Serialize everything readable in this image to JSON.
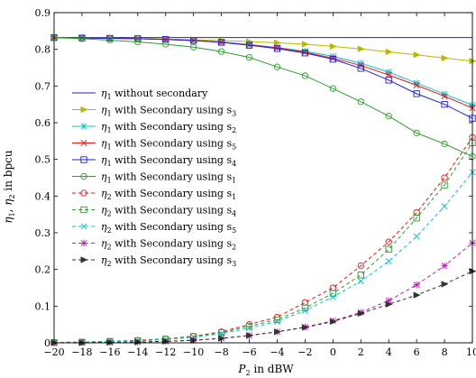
{
  "chart_data": {
    "type": "line",
    "xlabel": "P_2 in dBW",
    "ylabel": "η_1, η_2 in bpcu",
    "xlim": [
      -20,
      10
    ],
    "ylim": [
      0,
      0.9
    ],
    "xticks": [
      -20,
      -18,
      -16,
      -14,
      -12,
      -10,
      -8,
      -6,
      -4,
      -2,
      0,
      2,
      4,
      6,
      8,
      10
    ],
    "yticks": [
      0,
      0.1,
      0.2,
      0.3,
      0.4,
      0.5,
      0.6,
      0.7,
      0.8,
      0.9
    ],
    "grid": false,
    "legend_position": "center-left",
    "x": [
      -20,
      -18,
      -16,
      -14,
      -12,
      -10,
      -8,
      -6,
      -4,
      -2,
      0,
      2,
      4,
      6,
      8,
      10
    ],
    "series": [
      {
        "name": "η1 without secondary",
        "legend_main": "η",
        "legend_sub": "1",
        "legend_rest": " without secondary",
        "legend_sub2": "",
        "color": "#1f1fd6",
        "dash": "solid",
        "marker": "none",
        "values": [
          0.832,
          0.832,
          0.832,
          0.832,
          0.832,
          0.832,
          0.832,
          0.832,
          0.832,
          0.832,
          0.832,
          0.832,
          0.832,
          0.832,
          0.832,
          0.832
        ]
      },
      {
        "name": "η1 with Secondary using s3",
        "legend_main": "η",
        "legend_sub": "1",
        "legend_rest": " with Secondary using s",
        "legend_sub2": "3",
        "color": "#b8b800",
        "dash": "solid",
        "marker": "triangle-right",
        "values": [
          0.832,
          0.831,
          0.83,
          0.829,
          0.828,
          0.826,
          0.824,
          0.821,
          0.818,
          0.814,
          0.808,
          0.801,
          0.793,
          0.785,
          0.776,
          0.768
        ]
      },
      {
        "name": "η1 with Secondary using s2",
        "legend_main": "η",
        "legend_sub": "1",
        "legend_rest": " with Secondary using s",
        "legend_sub2": "2",
        "color": "#17becf",
        "dash": "solid",
        "marker": "star",
        "values": [
          0.832,
          0.831,
          0.83,
          0.829,
          0.827,
          0.824,
          0.82,
          0.813,
          0.805,
          0.795,
          0.781,
          0.762,
          0.738,
          0.708,
          0.678,
          0.648
        ]
      },
      {
        "name": "η1 with Secondary using s5",
        "legend_main": "η",
        "legend_sub": "1",
        "legend_rest": " with Secondary using s",
        "legend_sub2": "5",
        "color": "#e31a1c",
        "dash": "solid",
        "marker": "x",
        "values": [
          0.832,
          0.831,
          0.83,
          0.829,
          0.827,
          0.824,
          0.819,
          0.812,
          0.804,
          0.792,
          0.776,
          0.756,
          0.73,
          0.702,
          0.672,
          0.64
        ]
      },
      {
        "name": "η1 with Secondary using s4",
        "legend_main": "η",
        "legend_sub": "1",
        "legend_rest": " with Secondary using s",
        "legend_sub2": "4",
        "color": "#1f1fd6",
        "dash": "solid",
        "marker": "square",
        "values": [
          0.832,
          0.831,
          0.83,
          0.829,
          0.827,
          0.824,
          0.819,
          0.811,
          0.802,
          0.79,
          0.773,
          0.748,
          0.716,
          0.679,
          0.65,
          0.612
        ]
      },
      {
        "name": "η1 with Secondary using s1",
        "legend_main": "η",
        "legend_sub": "1",
        "legend_rest": " with Secondary using s",
        "legend_sub2": "1",
        "color": "#2ca02c",
        "dash": "solid",
        "marker": "circle",
        "values": [
          0.832,
          0.829,
          0.825,
          0.82,
          0.814,
          0.806,
          0.794,
          0.778,
          0.752,
          0.728,
          0.693,
          0.657,
          0.618,
          0.572,
          0.542,
          0.508
        ]
      },
      {
        "name": "η2 with Secondary using s1",
        "legend_main": "η",
        "legend_sub": "2",
        "legend_rest": " with Secondary using s",
        "legend_sub2": "1",
        "color": "#e31a1c",
        "dash": "dashed",
        "marker": "circle",
        "values": [
          0.001,
          0.002,
          0.004,
          0.007,
          0.011,
          0.018,
          0.03,
          0.05,
          0.07,
          0.11,
          0.15,
          0.21,
          0.275,
          0.355,
          0.45,
          0.56
        ]
      },
      {
        "name": "η2 with Secondary using s4",
        "legend_main": "η",
        "legend_sub": "2",
        "legend_rest": " with Secondary using s",
        "legend_sub2": "4",
        "color": "#2ca02c",
        "dash": "dashed",
        "marker": "square",
        "values": [
          0.001,
          0.002,
          0.004,
          0.006,
          0.01,
          0.017,
          0.028,
          0.045,
          0.063,
          0.095,
          0.135,
          0.185,
          0.255,
          0.34,
          0.43,
          0.545
        ]
      },
      {
        "name": "η2 with Secondary using s5",
        "legend_main": "η",
        "legend_sub": "2",
        "legend_rest": " with Secondary using s",
        "legend_sub2": "5",
        "color": "#17becf",
        "dash": "dashed",
        "marker": "x",
        "values": [
          0.001,
          0.002,
          0.003,
          0.005,
          0.009,
          0.015,
          0.025,
          0.04,
          0.058,
          0.088,
          0.125,
          0.168,
          0.222,
          0.29,
          0.372,
          0.465
        ]
      },
      {
        "name": "η2 with Secondary using s2",
        "legend_main": "η",
        "legend_sub": "2",
        "legend_rest": " with Secondary using s",
        "legend_sub2": "2",
        "color": "#c01cc0",
        "dash": "dashed",
        "marker": "star",
        "values": [
          0.0,
          0.001,
          0.001,
          0.002,
          0.004,
          0.007,
          0.012,
          0.02,
          0.03,
          0.043,
          0.06,
          0.083,
          0.115,
          0.158,
          0.21,
          0.272
        ]
      },
      {
        "name": "η2 with Secondary using s3",
        "legend_main": "η",
        "legend_sub": "2",
        "legend_rest": " with Secondary using s",
        "legend_sub2": "3",
        "color": "#333333",
        "dash": "dashed",
        "marker": "triangle-right",
        "values": [
          0.0,
          0.0,
          0.001,
          0.002,
          0.004,
          0.007,
          0.012,
          0.02,
          0.03,
          0.042,
          0.058,
          0.08,
          0.105,
          0.13,
          0.16,
          0.195
        ]
      }
    ]
  }
}
